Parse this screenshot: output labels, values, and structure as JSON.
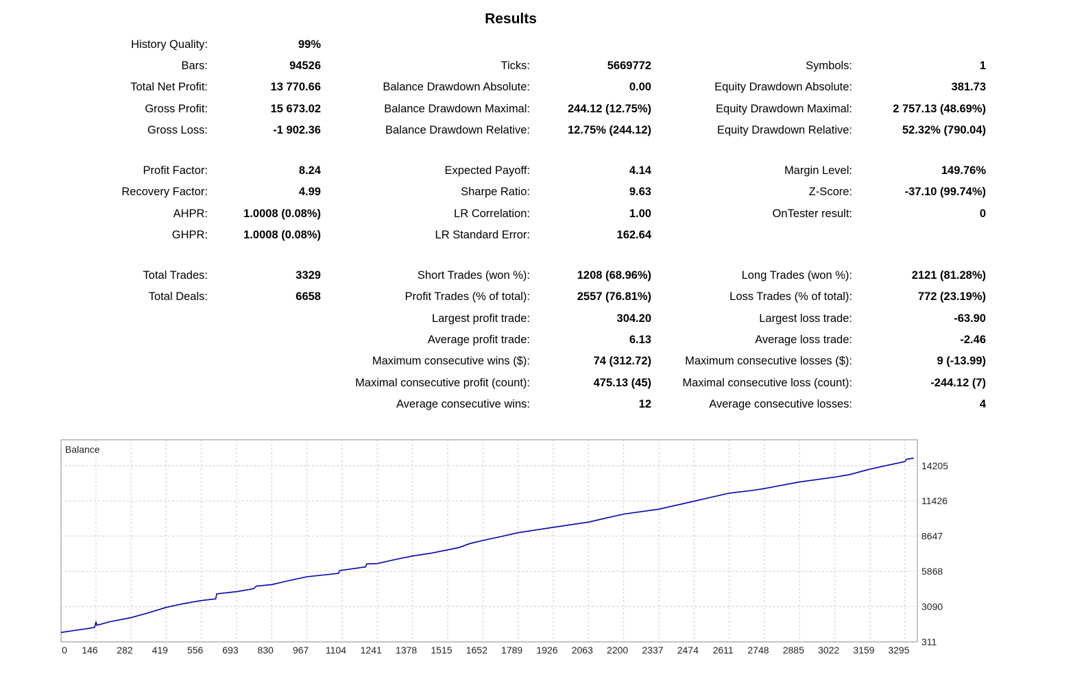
{
  "title": "Results",
  "rows": [
    [
      [
        "History Quality:",
        "99%"
      ],
      null,
      null
    ],
    [
      [
        "Bars:",
        "94526"
      ],
      [
        "Ticks:",
        "5669772"
      ],
      [
        "Symbols:",
        "1"
      ]
    ],
    [
      [
        "Total Net Profit:",
        "13 770.66"
      ],
      [
        "Balance Drawdown Absolute:",
        "0.00"
      ],
      [
        "Equity Drawdown Absolute:",
        "381.73"
      ]
    ],
    [
      [
        "Gross Profit:",
        "15 673.02"
      ],
      [
        "Balance Drawdown Maximal:",
        "244.12 (12.75%)"
      ],
      [
        "Equity Drawdown Maximal:",
        "2 757.13 (48.69%)"
      ]
    ],
    [
      [
        "Gross Loss:",
        "-1 902.36"
      ],
      [
        "Balance Drawdown Relative:",
        "12.75% (244.12)"
      ],
      [
        "Equity Drawdown Relative:",
        "52.32% (790.04)"
      ]
    ],
    [
      [
        "Profit Factor:",
        "8.24"
      ],
      [
        "Expected Payoff:",
        "4.14"
      ],
      [
        "Margin Level:",
        "149.76%"
      ]
    ],
    [
      [
        "Recovery Factor:",
        "4.99"
      ],
      [
        "Sharpe Ratio:",
        "9.63"
      ],
      [
        "Z-Score:",
        "-37.10 (99.74%)"
      ]
    ],
    [
      [
        "AHPR:",
        "1.0008 (0.08%)"
      ],
      [
        "LR Correlation:",
        "1.00"
      ],
      [
        "OnTester result:",
        "0"
      ]
    ],
    [
      [
        "GHPR:",
        "1.0008 (0.08%)"
      ],
      [
        "LR Standard Error:",
        "162.64"
      ],
      null
    ],
    [
      [
        "Total Trades:",
        "3329"
      ],
      [
        "Short Trades (won %):",
        "1208 (68.96%)"
      ],
      [
        "Long Trades (won %):",
        "2121 (81.28%)"
      ]
    ],
    [
      [
        "Total Deals:",
        "6658"
      ],
      [
        "Profit Trades (% of total):",
        "2557 (76.81%)"
      ],
      [
        "Loss Trades (% of total):",
        "772 (23.19%)"
      ]
    ],
    [
      null,
      [
        "Largest profit trade:",
        "304.20"
      ],
      [
        "Largest loss trade:",
        "-63.90"
      ]
    ],
    [
      null,
      [
        "Average profit trade:",
        "6.13"
      ],
      [
        "Average loss trade:",
        "-2.46"
      ]
    ],
    [
      null,
      [
        "Maximum consecutive wins ($):",
        "74 (312.72)"
      ],
      [
        "Maximum consecutive losses ($):",
        "9 (-13.99)"
      ]
    ],
    [
      null,
      [
        "Maximal consecutive profit (count):",
        "475.13 (45)"
      ],
      [
        "Maximal consecutive loss (count):",
        "-244.12 (7)"
      ]
    ],
    [
      null,
      [
        "Average consecutive wins:",
        "12"
      ],
      [
        "Average consecutive losses:",
        "4"
      ]
    ]
  ],
  "chart_data": {
    "type": "line",
    "title": "Balance",
    "xlabel": "",
    "ylabel": "",
    "line_color": "#0000b0",
    "grid": true,
    "xlim": [
      0,
      3329
    ],
    "ylim": [
      311,
      15000
    ],
    "x_ticks": [
      0,
      146,
      282,
      419,
      556,
      693,
      830,
      967,
      1104,
      1241,
      1378,
      1515,
      1652,
      1789,
      1926,
      2063,
      2200,
      2337,
      2474,
      2611,
      2748,
      2885,
      3022,
      3159,
      3295
    ],
    "y_ticks": [
      311,
      3090,
      5868,
      8647,
      11426,
      14205
    ],
    "series": [
      {
        "name": "Balance",
        "x": [
          0,
          60,
          120,
          140,
          146,
          150,
          200,
          282,
          350,
          419,
          480,
          556,
          612,
          616,
          693,
          760,
          770,
          830,
          900,
          967,
          1090,
          1095,
          1104,
          1195,
          1200,
          1241,
          1310,
          1378,
          1450,
          1515,
          1560,
          1600,
          1652,
          1720,
          1789,
          1926,
          2063,
          2200,
          2337,
          2474,
          2611,
          2700,
          2748,
          2800,
          2885,
          3022,
          3080,
          3159,
          3295,
          3300,
          3329
        ],
        "y": [
          1051,
          1200,
          1380,
          1446,
          1855,
          1620,
          1900,
          2217,
          2600,
          3030,
          3300,
          3568,
          3697,
          4090,
          4268,
          4500,
          4700,
          4828,
          5150,
          5440,
          5710,
          5942,
          5960,
          6213,
          6450,
          6483,
          6800,
          7078,
          7300,
          7565,
          7750,
          8050,
          8306,
          8600,
          8917,
          9342,
          9750,
          10384,
          10776,
          11400,
          12039,
          12250,
          12401,
          12600,
          12920,
          13303,
          13500,
          13935,
          14529,
          14700,
          14799
        ]
      }
    ]
  }
}
